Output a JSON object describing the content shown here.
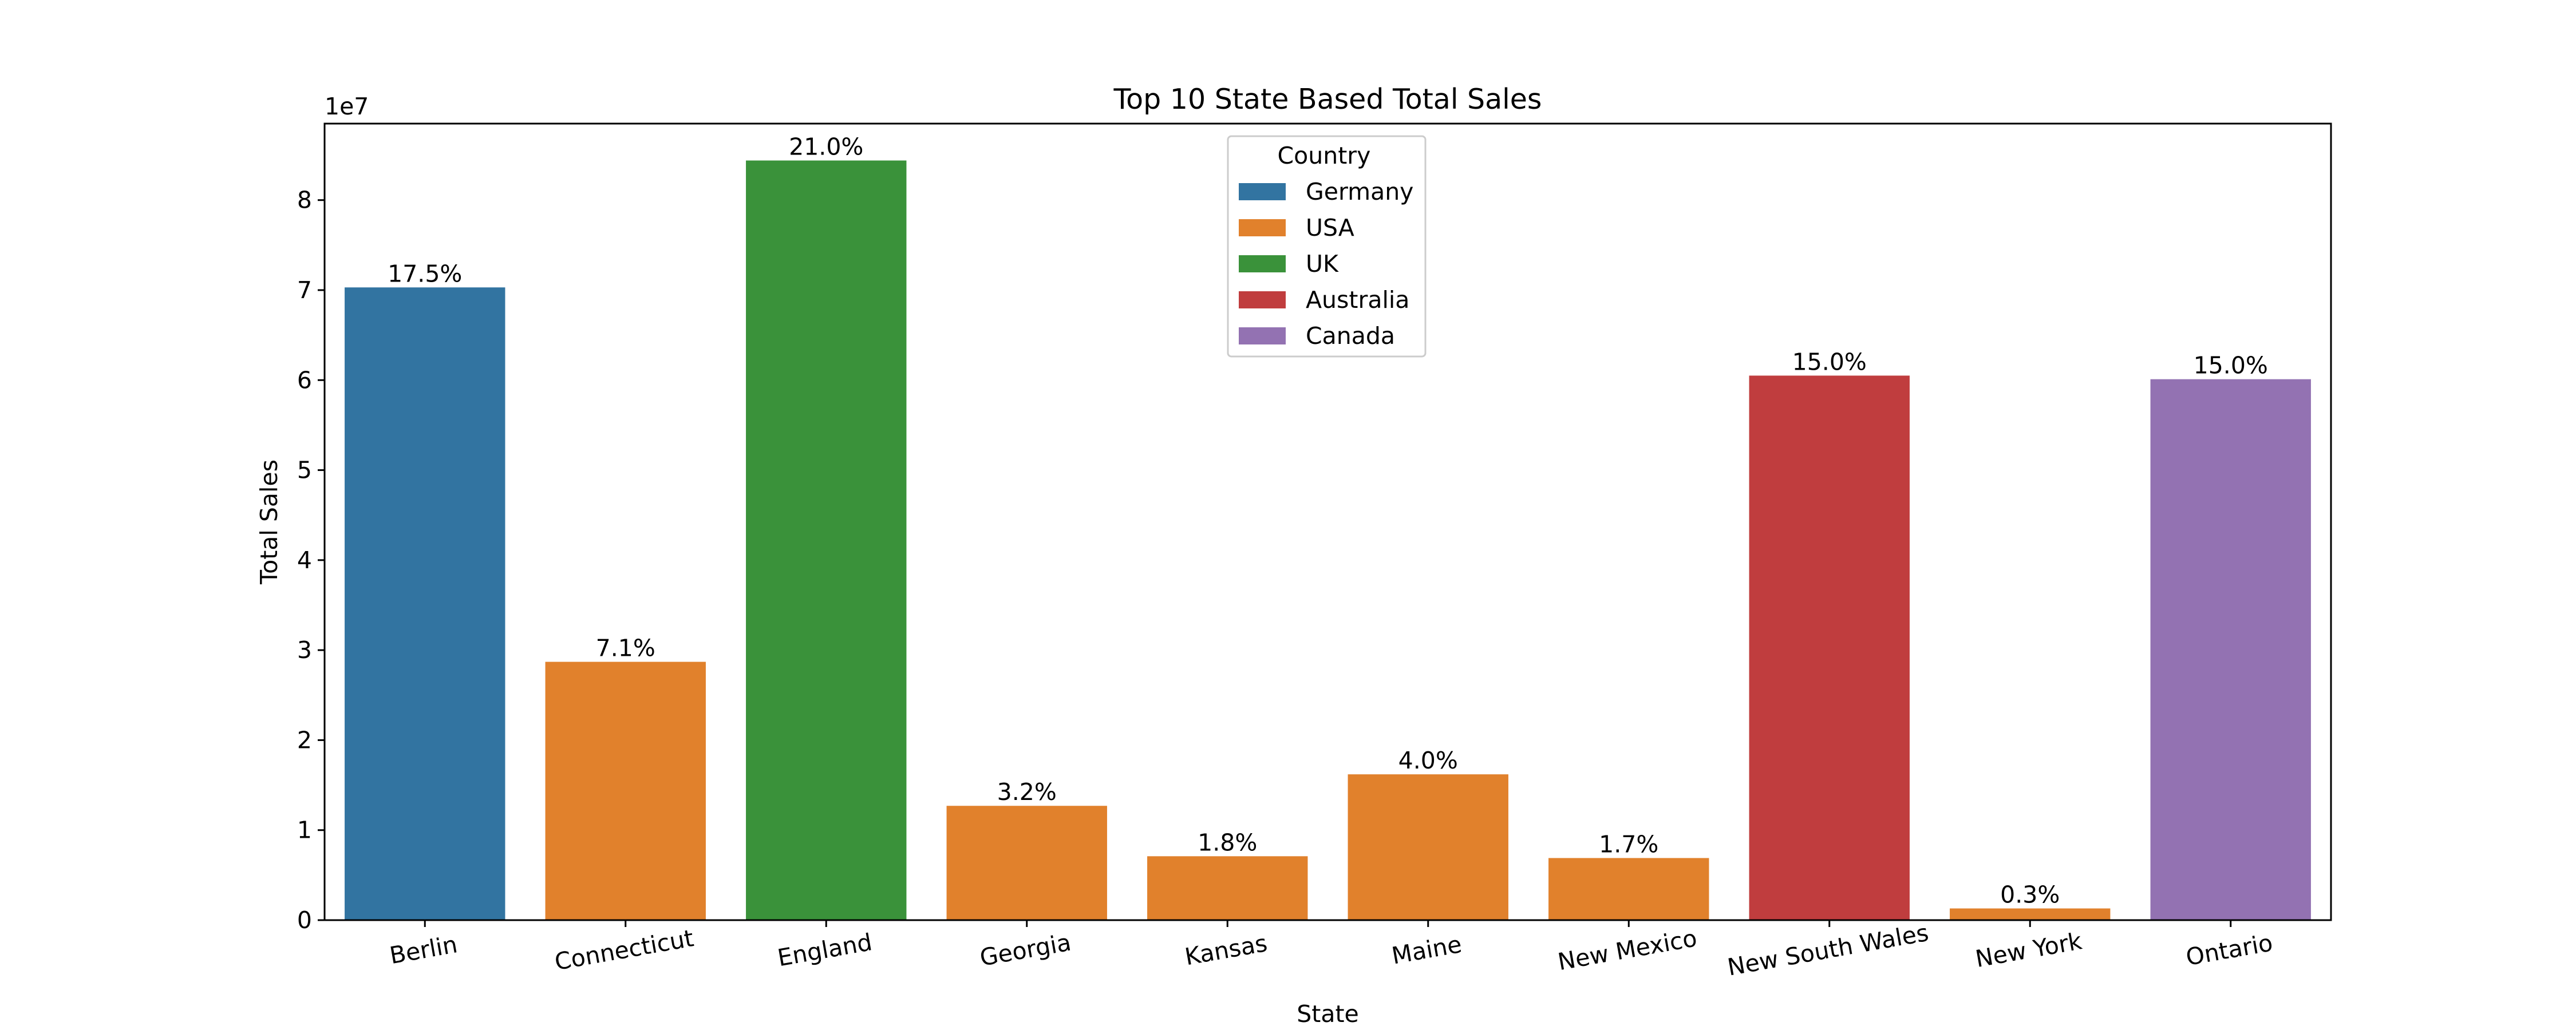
{
  "chart_data": {
    "type": "bar",
    "title": "Top 10 State Based Total Sales",
    "xlabel": "State",
    "ylabel": "Total Sales",
    "y_offset_label": "1e7",
    "ylim": [
      0,
      8.85
    ],
    "yticks": [
      0,
      1,
      2,
      3,
      4,
      5,
      6,
      7,
      8
    ],
    "ytick_labels": [
      "0",
      "1",
      "2",
      "3",
      "4",
      "5",
      "6",
      "7",
      "8"
    ],
    "categories": [
      "Berlin",
      "Connecticut",
      "England",
      "Georgia",
      "Kansas",
      "Maine",
      "New Mexico",
      "New South Wales",
      "New York",
      "Ontario"
    ],
    "values": [
      7.03,
      2.87,
      8.44,
      1.27,
      0.71,
      1.62,
      0.69,
      6.05,
      0.13,
      6.01
    ],
    "countries": [
      "Germany",
      "USA",
      "UK",
      "USA",
      "USA",
      "USA",
      "USA",
      "Australia",
      "USA",
      "Canada"
    ],
    "bar_labels": [
      "17.5%",
      "7.1%",
      "21.0%",
      "3.2%",
      "1.8%",
      "4.0%",
      "1.7%",
      "15.0%",
      "0.3%",
      "15.0%"
    ],
    "legend": {
      "title": "Country",
      "location": "upper center",
      "entries": [
        {
          "name": "Germany",
          "color": "#3274a1"
        },
        {
          "name": "USA",
          "color": "#e1812c"
        },
        {
          "name": "UK",
          "color": "#3a923a"
        },
        {
          "name": "Australia",
          "color": "#c03d3e"
        },
        {
          "name": "Canada",
          "color": "#9372b2"
        }
      ]
    },
    "grid": false
  }
}
